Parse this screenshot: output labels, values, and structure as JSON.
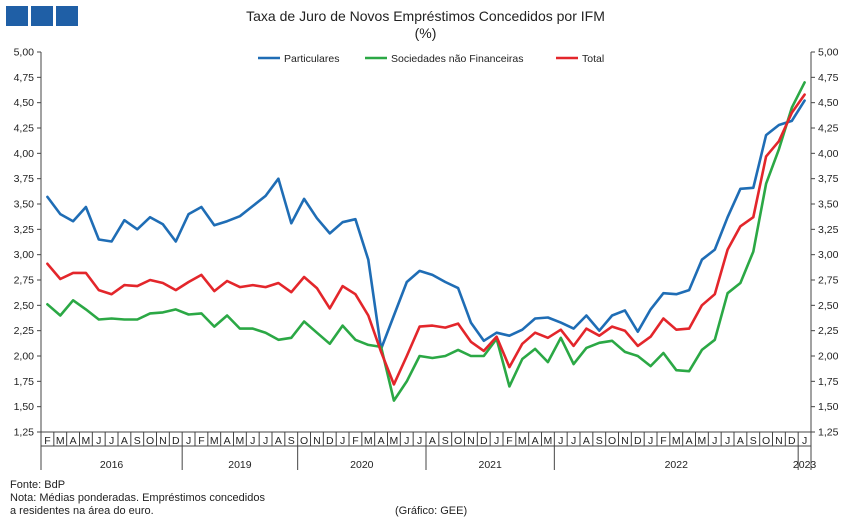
{
  "header": {
    "title": "Taxa de Juro de Novos Empréstimos Concedidos por IFM",
    "subtitle": "(%)"
  },
  "footer": {
    "source": "Fonte: BdP",
    "note_line1": "Nota: Médias ponderadas. Empréstimos concedidos",
    "note_line2": "a residentes na área do euro.",
    "credit": "(Gráfico: GEE)"
  },
  "colors": {
    "logo": "#1f5fa6"
  },
  "chart_data": {
    "type": "line",
    "ylim": [
      1.25,
      5.0
    ],
    "yticks": [
      "5,00",
      "4,75",
      "4,50",
      "4,25",
      "4,00",
      "3,75",
      "3,50",
      "3,25",
      "3,00",
      "2,75",
      "2,50",
      "2,25",
      "2,00",
      "1,75",
      "1,50",
      "1,25"
    ],
    "legend_position": "top",
    "grid": false,
    "month_labels": [
      "F",
      "M",
      "A",
      "M",
      "J",
      "J",
      "A",
      "S",
      "O",
      "N",
      "D",
      "J",
      "F",
      "M",
      "A",
      "M",
      "J",
      "J",
      "A",
      "S",
      "O",
      "N",
      "D",
      "J",
      "F",
      "M",
      "A",
      "M",
      "J",
      "J",
      "A",
      "S",
      "O",
      "N",
      "D",
      "J",
      "F",
      "M",
      "A",
      "M",
      "J",
      "J",
      "A",
      "S",
      "O",
      "N",
      "D",
      "J",
      "F",
      "M",
      "A",
      "M",
      "J",
      "J",
      "A",
      "S",
      "O",
      "N",
      "D",
      "J"
    ],
    "year_labels": [
      {
        "label": "2016",
        "from": 0,
        "to": 10
      },
      {
        "label": "2019",
        "from": 11,
        "to": 19
      },
      {
        "label": "2020",
        "from": 20,
        "to": 29
      },
      {
        "label": "2021",
        "from": 30,
        "to": 39
      },
      {
        "label": "2022",
        "from": 40,
        "to": 58
      },
      {
        "label": "2023",
        "from": 59,
        "to": 59
      }
    ],
    "series": [
      {
        "name": "Particulares",
        "color": "#1f6db5",
        "values": [
          3.57,
          3.4,
          3.33,
          3.47,
          3.15,
          3.13,
          3.34,
          3.25,
          3.37,
          3.3,
          3.13,
          3.4,
          3.47,
          3.29,
          3.33,
          3.38,
          3.48,
          3.58,
          3.75,
          3.31,
          3.55,
          3.36,
          3.21,
          3.32,
          3.35,
          2.95,
          2.07,
          2.4,
          2.73,
          2.84,
          2.8,
          2.73,
          2.67,
          2.33,
          2.15,
          2.23,
          2.2,
          2.26,
          2.37,
          2.38,
          2.33,
          2.27,
          2.4,
          2.25,
          2.4,
          2.45,
          2.24,
          2.46,
          2.62,
          2.61,
          2.65,
          2.95,
          3.05,
          3.37,
          3.65,
          3.66,
          4.18,
          4.28,
          4.32,
          4.52
        ]
      },
      {
        "name": "Sociedades não Financeiras",
        "color": "#2ba845",
        "values": [
          2.51,
          2.4,
          2.55,
          2.46,
          2.36,
          2.37,
          2.36,
          2.36,
          2.42,
          2.43,
          2.46,
          2.41,
          2.42,
          2.29,
          2.4,
          2.27,
          2.27,
          2.23,
          2.16,
          2.18,
          2.34,
          2.23,
          2.12,
          2.3,
          2.16,
          2.11,
          2.09,
          1.56,
          1.75,
          2.0,
          1.98,
          2.0,
          2.06,
          2.0,
          2.0,
          2.17,
          1.7,
          1.97,
          2.07,
          1.94,
          2.18,
          1.92,
          2.08,
          2.13,
          2.15,
          2.04,
          2.0,
          1.9,
          2.03,
          1.86,
          1.85,
          2.06,
          2.16,
          2.62,
          2.72,
          3.03,
          3.7,
          4.04,
          4.45,
          4.7
        ]
      },
      {
        "name": "Total",
        "color": "#e3262b",
        "values": [
          2.91,
          2.76,
          2.82,
          2.82,
          2.65,
          2.61,
          2.7,
          2.69,
          2.75,
          2.72,
          2.65,
          2.73,
          2.8,
          2.64,
          2.74,
          2.68,
          2.7,
          2.68,
          2.72,
          2.63,
          2.78,
          2.67,
          2.47,
          2.69,
          2.61,
          2.4,
          2.04,
          1.72,
          2.0,
          2.29,
          2.3,
          2.28,
          2.32,
          2.14,
          2.05,
          2.19,
          1.89,
          2.12,
          2.23,
          2.18,
          2.26,
          2.1,
          2.27,
          2.2,
          2.29,
          2.25,
          2.1,
          2.19,
          2.37,
          2.26,
          2.27,
          2.5,
          2.61,
          3.05,
          3.28,
          3.37,
          3.97,
          4.12,
          4.4,
          4.58
        ]
      }
    ]
  }
}
